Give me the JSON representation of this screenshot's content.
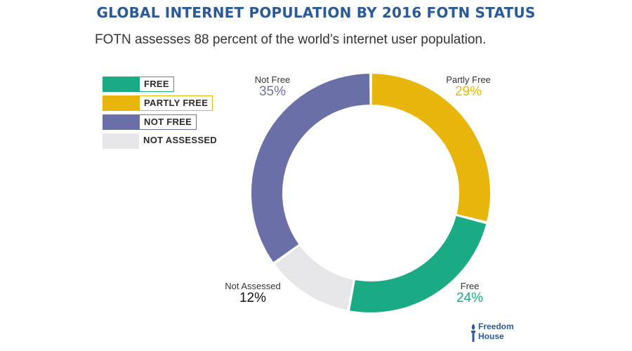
{
  "title": "GLOBAL INTERNET POPULATION BY 2016 FOTN STATUS",
  "subtitle": "FOTN assesses 88 percent of the world’s internet user population.",
  "colors": {
    "title": "#2a5a98",
    "free": "#1aaa84",
    "partly_free": "#e8b60a",
    "not_free": "#6a6fa8",
    "not_assessed": "#e6e6e9"
  },
  "legend": [
    {
      "label": "FREE",
      "color": "#1aaa84"
    },
    {
      "label": "PARTLY FREE",
      "color": "#e8b60a"
    },
    {
      "label": "NOT FREE",
      "color": "#6a6fa8"
    },
    {
      "label": "NOT ASSESSED",
      "color": "#e6e6e9"
    }
  ],
  "chart_data": {
    "type": "pie",
    "donut": true,
    "title": "GLOBAL INTERNET POPULATION BY 2016 FOTN STATUS",
    "subtitle": "FOTN assesses 88 percent of the world’s internet user population.",
    "legend_position": "left",
    "slices": [
      {
        "label": "Partly Free",
        "value": 29,
        "display": "29%",
        "color": "#e8b60a"
      },
      {
        "label": "Free",
        "value": 24,
        "display": "24%",
        "color": "#1aaa84"
      },
      {
        "label": "Not Assessed",
        "value": 12,
        "display": "12%",
        "color": "#e6e6e9"
      },
      {
        "label": "Not Free",
        "value": 35,
        "display": "35%",
        "color": "#6a6fa8"
      }
    ]
  },
  "logo": {
    "line1": "Freedom",
    "line2": "House",
    "icon": "torch-icon"
  }
}
